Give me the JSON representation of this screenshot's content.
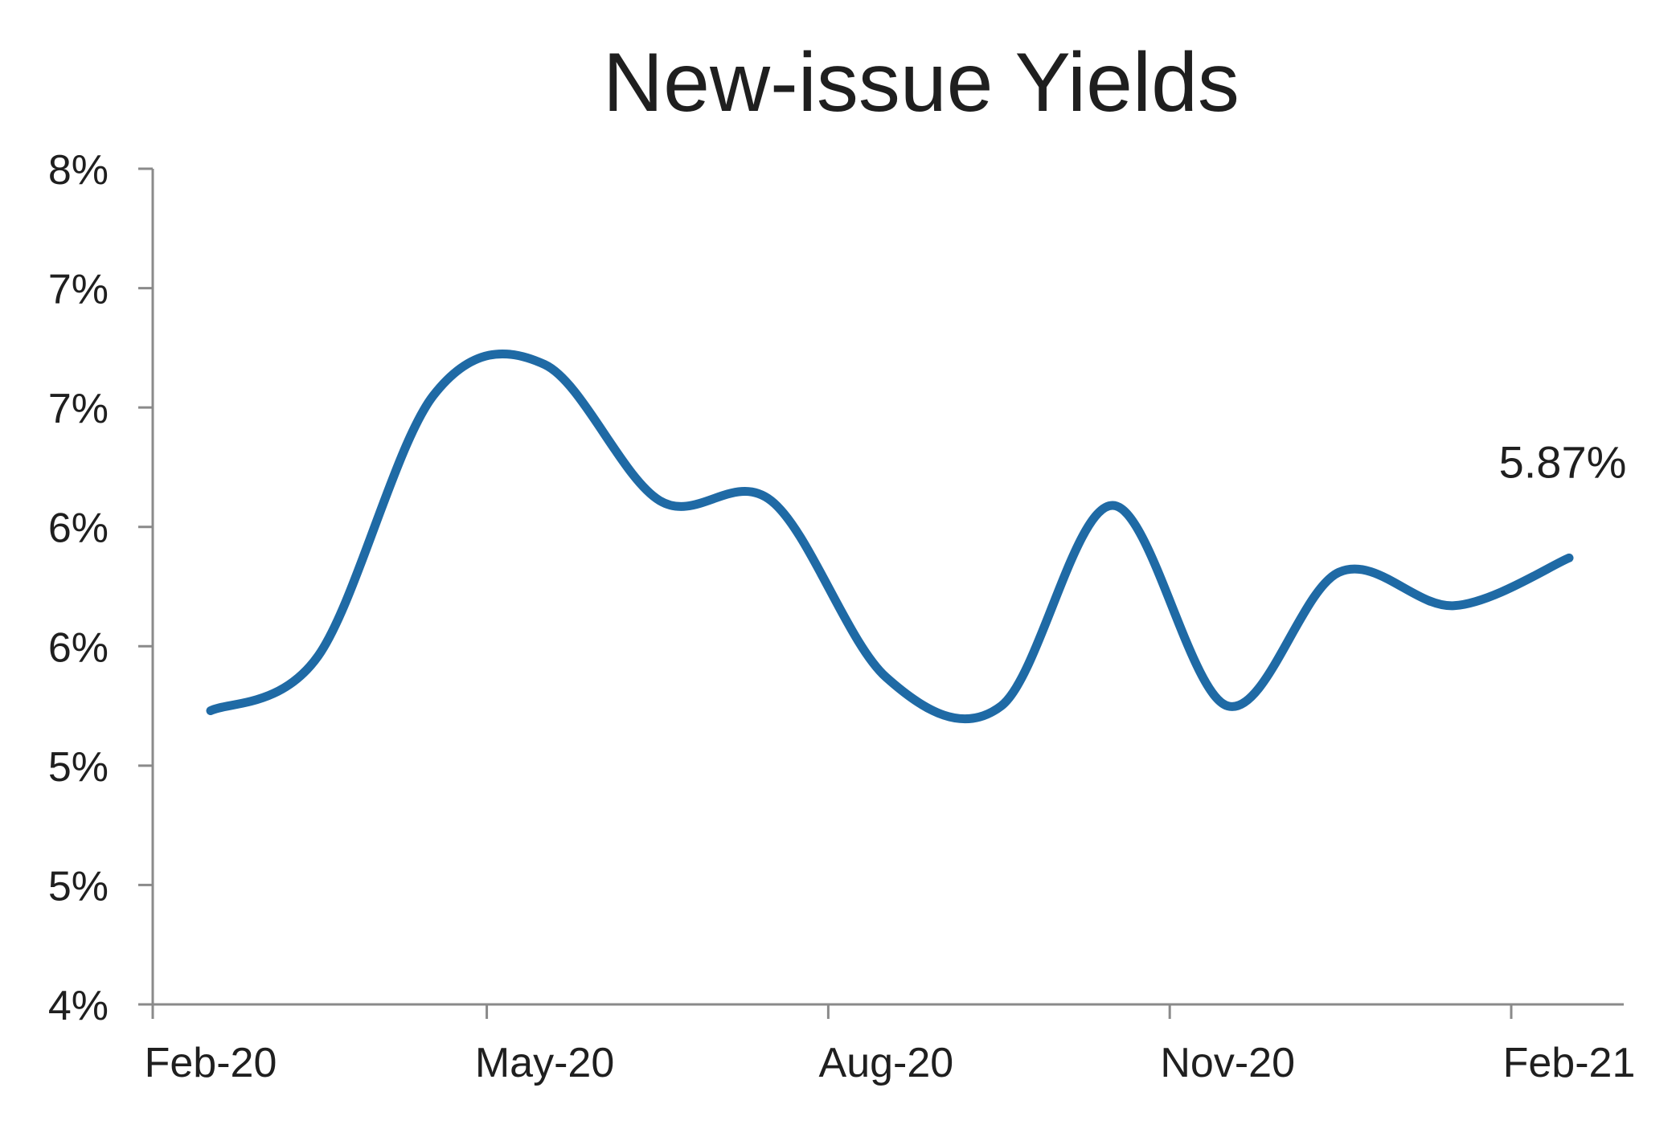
{
  "chart_data": {
    "type": "line",
    "title": "New-issue Yields",
    "xlabel": "",
    "ylabel": "",
    "x_tick_labels": [
      "Feb-20",
      "May-20",
      "Aug-20",
      "Nov-20",
      "Feb-21"
    ],
    "y_tick_labels": [
      "8%",
      "7%",
      "7%",
      "6%",
      "6%",
      "5%",
      "5%",
      "4%"
    ],
    "ylim": [
      4.0,
      7.5
    ],
    "grid": false,
    "legend": "none",
    "series": [
      {
        "color": "#1f6aa5",
        "points": [
          {
            "x": "2020-02-01",
            "y": 5.23
          },
          {
            "x": "2020-03-01",
            "y": 5.46
          },
          {
            "x": "2020-04-01",
            "y": 6.55
          },
          {
            "x": "2020-05-01",
            "y": 6.68
          },
          {
            "x": "2020-06-01",
            "y": 6.11
          },
          {
            "x": "2020-07-01",
            "y": 6.11
          },
          {
            "x": "2020-08-01",
            "y": 5.37
          },
          {
            "x": "2020-09-01",
            "y": 5.25
          },
          {
            "x": "2020-10-01",
            "y": 6.09
          },
          {
            "x": "2020-11-01",
            "y": 5.25
          },
          {
            "x": "2020-12-01",
            "y": 5.81
          },
          {
            "x": "2021-01-01",
            "y": 5.67
          },
          {
            "x": "2021-02-01",
            "y": 5.87
          }
        ]
      }
    ],
    "annotations": [
      {
        "text": "5.87%",
        "x": "2021-02-01",
        "y": 5.87
      }
    ]
  }
}
